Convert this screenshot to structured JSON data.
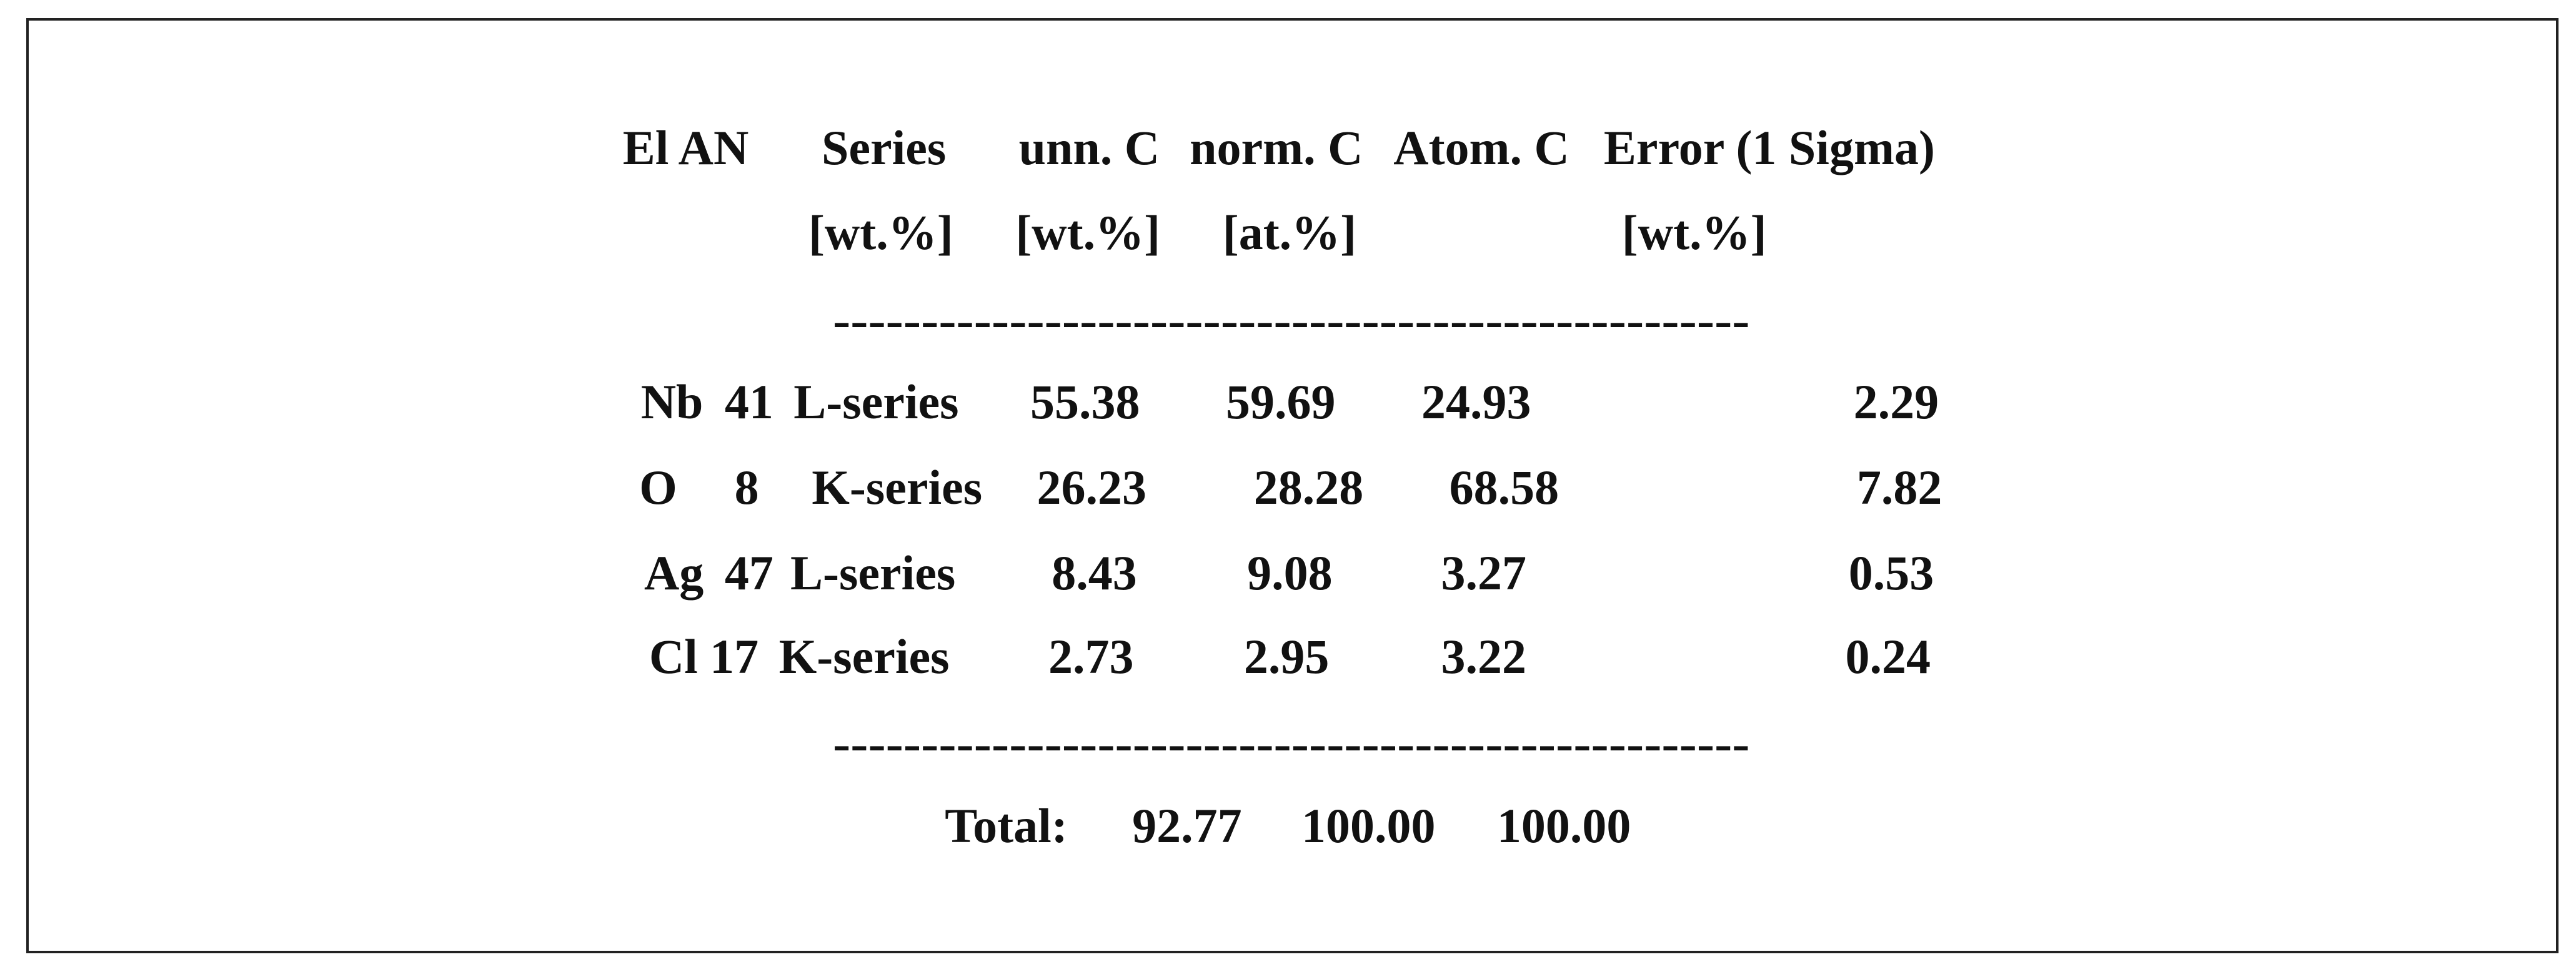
{
  "header": [
    "El AN",
    "Series",
    "unn. C",
    "norm. C",
    "Atom. C",
    "Error (1 Sigma)"
  ],
  "units": [
    "[wt.%]",
    "[wt.%]",
    "[at.%]",
    "[wt.%]"
  ],
  "separators": [
    "----------------------------------------------------",
    "----------------------------------------------------"
  ],
  "rows": [
    [
      "Nb",
      "41",
      "L-series",
      "55.38",
      "59.69",
      "24.93",
      "2.29"
    ],
    [
      "O",
      "8",
      "K-series",
      "26.23",
      "28.28",
      "68.58",
      "7.82"
    ],
    [
      "Ag",
      "47",
      "L-series",
      "8.43",
      "9.08",
      "3.27",
      "0.53"
    ],
    [
      "Cl",
      "17",
      "K-series",
      "2.73",
      "2.95",
      "3.22",
      "0.24"
    ]
  ],
  "total": {
    "label": "Total:",
    "values": [
      "92.77",
      "100.00",
      "100.00"
    ]
  }
}
